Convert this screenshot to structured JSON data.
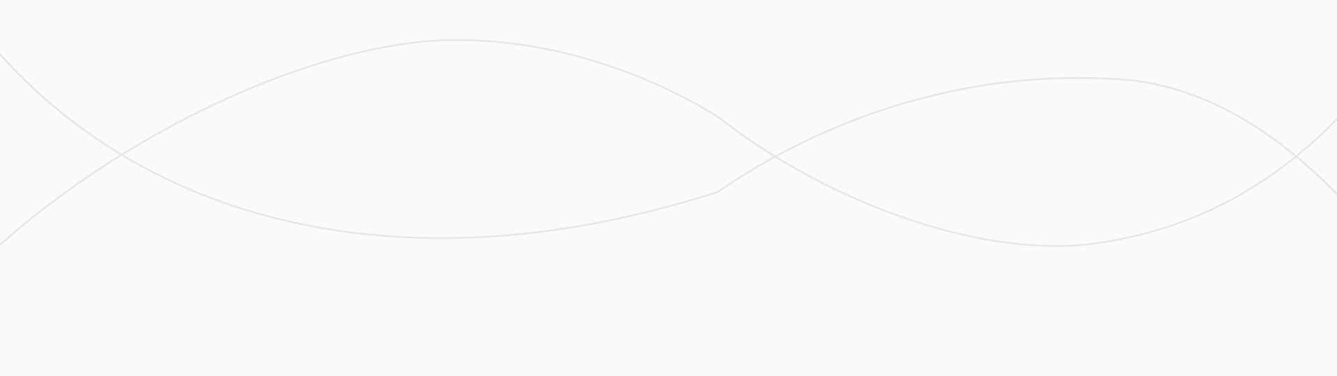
{
  "colors": {
    "background": "#fafafa",
    "line": "#e6e6e6"
  }
}
